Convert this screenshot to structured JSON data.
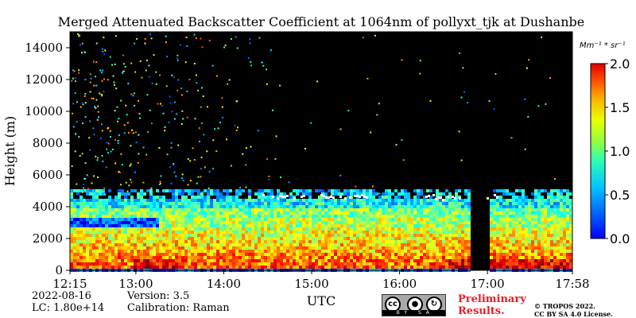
{
  "chart_data": {
    "type": "heatmap",
    "title": "Merged Attenuated Backscatter Coefficient at 1064nm of pollyxt_tjk at Dushanbe",
    "xlabel": "UTC",
    "ylabel": "Height (m)",
    "x_ticks": [
      "12:15",
      "13:00",
      "14:00",
      "15:00",
      "16:00",
      "17:00",
      "17:58"
    ],
    "x_range": [
      "12:15",
      "17:58"
    ],
    "y_ticks": [
      0,
      2000,
      4000,
      6000,
      8000,
      10000,
      12000,
      14000
    ],
    "y_range": [
      0,
      15000
    ],
    "colorbar": {
      "unit_label": "Mm⁻¹ * sr⁻¹",
      "ticks": [
        "0.0",
        "0.5",
        "1.0",
        "1.5",
        "2.0"
      ],
      "range": [
        0,
        2.0
      ],
      "colormap": "jet"
    },
    "features": {
      "boundary_layer_top_m": 4800,
      "aerosol_layer_m": [
        0,
        4800
      ],
      "thin_low_layer_m": [
        2800,
        3300
      ],
      "near_surface_peak_m": [
        200,
        800
      ],
      "cloud_tops_m": [
        4600,
        4900
      ],
      "data_gap_utc": [
        "16:50",
        "17:00"
      ]
    }
  },
  "footer": {
    "date": "2022-08-16",
    "lc": "LC: 1.80e+14",
    "version": "Version: 3.5",
    "calibration": "Calibration: Raman",
    "preliminary_line1": "Preliminary",
    "preliminary_line2": "Results.",
    "copyright_line1": "© TROPOS 2022.",
    "copyright_line2": "CC BY SA 4.0 License.",
    "cc_label": "cc",
    "cc_strip": "BY SA"
  }
}
